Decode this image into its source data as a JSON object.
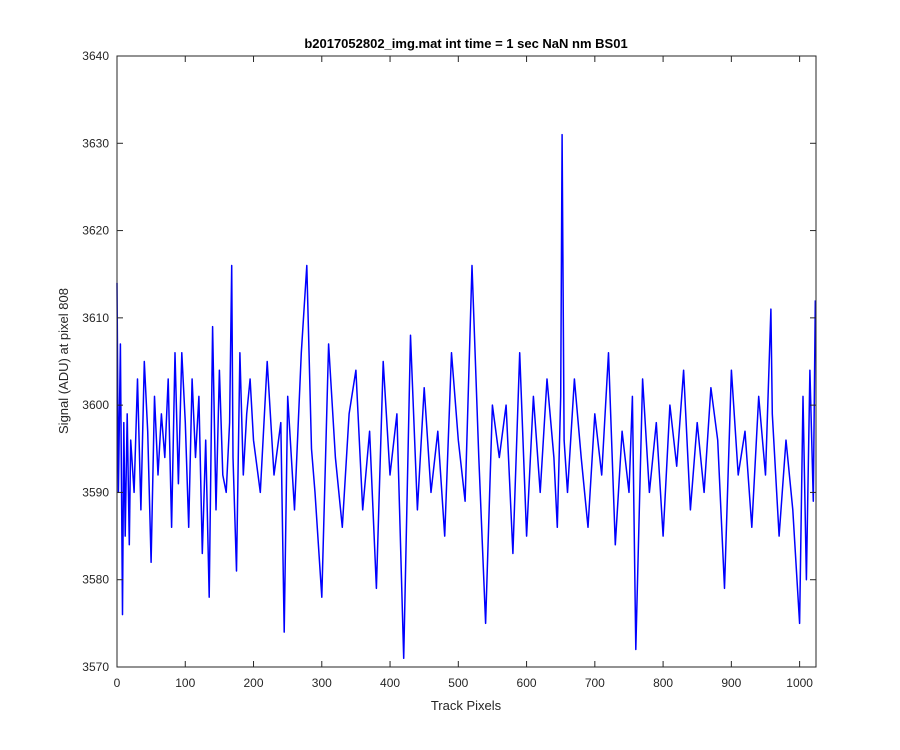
{
  "chart_data": {
    "type": "line",
    "title": "b2017052802_img.mat int time = 1 sec  NaN nm BS01",
    "xlabel": "Track Pixels",
    "ylabel": "Signal (ADU) at pixel 808",
    "xlim": [
      0,
      1024
    ],
    "ylim": [
      3570,
      3640
    ],
    "xticks": [
      0,
      100,
      200,
      300,
      400,
      500,
      600,
      700,
      800,
      900,
      1000
    ],
    "yticks": [
      3570,
      3580,
      3590,
      3600,
      3610,
      3620,
      3630,
      3640
    ],
    "grid": false,
    "legend": "none",
    "series": [
      {
        "color": "#0000ff",
        "sampling": "approximate: the plotted trace is a dense noisy signal over 1024 track pixels; values below are read at notable peaks and troughs and sampled in between",
        "x": [
          0,
          2,
          5,
          8,
          10,
          12,
          15,
          18,
          20,
          25,
          30,
          35,
          40,
          45,
          50,
          55,
          60,
          65,
          70,
          75,
          80,
          85,
          90,
          95,
          100,
          105,
          110,
          115,
          120,
          125,
          130,
          135,
          140,
          145,
          150,
          155,
          160,
          165,
          168,
          170,
          175,
          180,
          185,
          190,
          195,
          200,
          210,
          220,
          230,
          240,
          245,
          250,
          260,
          270,
          278,
          285,
          290,
          300,
          310,
          320,
          330,
          340,
          350,
          360,
          370,
          380,
          390,
          400,
          410,
          420,
          430,
          440,
          450,
          460,
          470,
          480,
          490,
          500,
          510,
          520,
          530,
          540,
          550,
          560,
          570,
          580,
          590,
          600,
          610,
          620,
          630,
          640,
          645,
          650,
          652,
          655,
          660,
          670,
          680,
          690,
          700,
          710,
          720,
          730,
          740,
          750,
          755,
          760,
          770,
          780,
          790,
          800,
          810,
          820,
          830,
          840,
          850,
          860,
          870,
          880,
          890,
          900,
          910,
          920,
          930,
          940,
          950,
          958,
          960,
          970,
          980,
          990,
          1000,
          1005,
          1010,
          1015,
          1020,
          1023
        ],
        "y": [
          3614,
          3590,
          3607,
          3576,
          3598,
          3585,
          3599,
          3584,
          3596,
          3590,
          3603,
          3588,
          3605,
          3597,
          3582,
          3601,
          3592,
          3599,
          3594,
          3603,
          3586,
          3606,
          3591,
          3606,
          3598,
          3586,
          3603,
          3594,
          3601,
          3583,
          3596,
          3578,
          3609,
          3588,
          3604,
          3592,
          3590,
          3598,
          3616,
          3594,
          3581,
          3606,
          3592,
          3599,
          3603,
          3596,
          3590,
          3605,
          3592,
          3598,
          3574,
          3601,
          3588,
          3606,
          3616,
          3595,
          3590,
          3578,
          3607,
          3594,
          3586,
          3599,
          3604,
          3588,
          3597,
          3579,
          3605,
          3592,
          3599,
          3571,
          3608,
          3588,
          3602,
          3590,
          3597,
          3585,
          3606,
          3596,
          3589,
          3616,
          3594,
          3575,
          3600,
          3594,
          3600,
          3583,
          3606,
          3585,
          3601,
          3590,
          3603,
          3594,
          3586,
          3601,
          3631,
          3596,
          3590,
          3603,
          3594,
          3586,
          3599,
          3592,
          3606,
          3584,
          3597,
          3590,
          3601,
          3572,
          3603,
          3590,
          3598,
          3585,
          3600,
          3593,
          3604,
          3588,
          3598,
          3590,
          3602,
          3596,
          3579,
          3604,
          3592,
          3597,
          3586,
          3601,
          3592,
          3611,
          3599,
          3585,
          3596,
          3588,
          3575,
          3601,
          3580,
          3604,
          3589,
          3612
        ]
      }
    ]
  }
}
